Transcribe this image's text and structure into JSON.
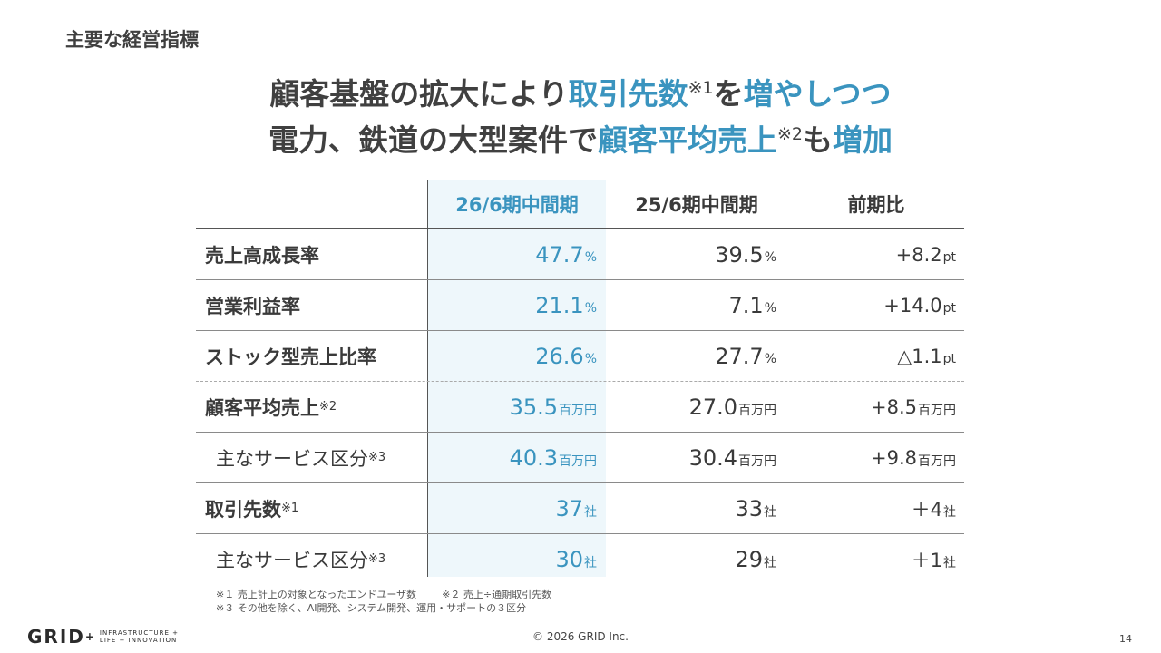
{
  "section_title": "主要な経営指標",
  "headline": {
    "line1": {
      "a": "顧客基盤の拡大により",
      "b": "取引先数",
      "sup": "※1",
      "c": "を",
      "d": "増やしつつ"
    },
    "line2": {
      "a": "電力、鉄道の大型案件で",
      "b": "顧客平均売上",
      "sup": "※2",
      "c": "も",
      "d": "増加"
    }
  },
  "table": {
    "headers": [
      "26/6期中間期",
      "25/6期中間期",
      "前期比"
    ],
    "rows": [
      {
        "label": "売上高成長率",
        "sup": "",
        "v1": "47.7",
        "u1": "%",
        "v2": "39.5",
        "u2": "%",
        "v3": "+8.2",
        "u3": "pt"
      },
      {
        "label": "営業利益率",
        "sup": "",
        "v1": "21.1",
        "u1": "%",
        "v2": "7.1",
        "u2": "%",
        "v3": "+14.0",
        "u3": "pt"
      },
      {
        "label": "ストック型売上比率",
        "sup": "",
        "v1": "26.6",
        "u1": "%",
        "v2": "27.7",
        "u2": "%",
        "v3": "△1.1",
        "u3": "pt"
      },
      {
        "label": "顧客平均売上",
        "sup": "※2",
        "v1": "35.5",
        "u1": "百万円",
        "v2": "27.0",
        "u2": "百万円",
        "v3": "+8.5",
        "u3": "百万円"
      },
      {
        "label": "主なサービス区分",
        "sup": "※3",
        "v1": "40.3",
        "u1": "百万円",
        "v2": "30.4",
        "u2": "百万円",
        "v3": "+9.8",
        "u3": "百万円"
      },
      {
        "label": "取引先数",
        "sup": "※1",
        "v1": "37",
        "u1": "社",
        "v2": "33",
        "u2": "社",
        "v3": "＋4",
        "u3": "社"
      },
      {
        "label": "主なサービス区分",
        "sup": "※3",
        "v1": "30",
        "u1": "社",
        "v2": "29",
        "u2": "社",
        "v3": "＋1",
        "u3": "社"
      }
    ]
  },
  "notes": {
    "n1": "※１ 売上計上の対象となったエンドユーザ数",
    "n2": "※２ 売上÷通期取引先数",
    "n3": "※３ その他を除く、AI開発、システム開発、運用・サポートの３区分"
  },
  "footer": {
    "logo_word": "GRID",
    "logo_plus": "+",
    "logo_tag1": "INFRASTRUCTURE +",
    "logo_tag2": "LIFE + INNOVATION",
    "copyright": "© 2026 GRID Inc.",
    "page_number": "14"
  }
}
